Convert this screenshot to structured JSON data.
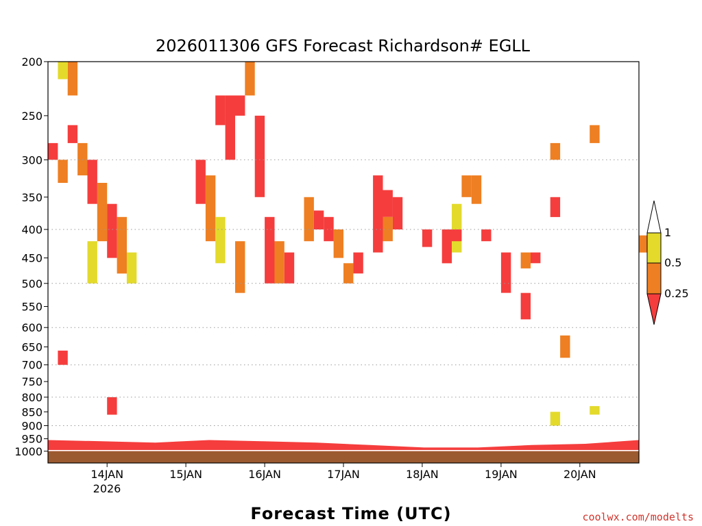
{
  "chart_data": {
    "type": "heatmap",
    "title": "2026011306 GFS Forecast Richardson# EGLL",
    "xlabel": "Forecast Time (UTC)",
    "ylabel": "",
    "credit": "coolwx.com/modelts",
    "y_scale": "log",
    "y_inverted": true,
    "y_ticks": [
      200,
      250,
      300,
      350,
      400,
      450,
      500,
      550,
      600,
      650,
      700,
      750,
      800,
      850,
      900,
      950,
      1000
    ],
    "y_tick_labels": [
      "200",
      "250",
      "300",
      "350",
      "400",
      "450",
      "500",
      "550",
      "600",
      "650",
      "700",
      "750",
      "800",
      "850",
      "900",
      "950",
      "1000"
    ],
    "y_gridlines": [
      300,
      400,
      500,
      600,
      700,
      800,
      900
    ],
    "x_range": [
      "2026-01-13T06:00Z",
      "2026-01-20T18:00Z"
    ],
    "x_ticks": [
      "2026-01-14T00:00Z",
      "2026-01-15T00:00Z",
      "2026-01-16T00:00Z",
      "2026-01-17T00:00Z",
      "2026-01-18T00:00Z",
      "2026-01-19T00:00Z",
      "2026-01-20T00:00Z"
    ],
    "x_tick_labels": [
      "14JAN",
      "15JAN",
      "16JAN",
      "17JAN",
      "18JAN",
      "19JAN",
      "20JAN"
    ],
    "x_sub_label": "2026",
    "legend": {
      "position": "right",
      "bins": [
        {
          "range": [
            0,
            0.25
          ],
          "color": "#f53d3d"
        },
        {
          "range": [
            0.25,
            0.5
          ],
          "color": "#ee7f22"
        },
        {
          "range": [
            0.5,
            1
          ],
          "color": "#e3da2c"
        },
        {
          "range": [
            1,
            null
          ],
          "color": "#ffffff"
        }
      ],
      "labels": [
        "1",
        "0.5",
        "0.25"
      ]
    },
    "colors": {
      "low": "#f53d3d",
      "mid": "#ee7f22",
      "high": "#e3da2c",
      "ground": "#9b5a2f",
      "grid": "#999999"
    },
    "cells": [
      [
        "2026-01-13T12:00Z",
        200,
        230,
        "mid"
      ],
      [
        "2026-01-13T09:00Z",
        200,
        215,
        "high"
      ],
      [
        "2026-01-13T06:00Z",
        280,
        300,
        "low"
      ],
      [
        "2026-01-13T09:00Z",
        300,
        330,
        "mid"
      ],
      [
        "2026-01-13T12:00Z",
        260,
        280,
        "low"
      ],
      [
        "2026-01-13T15:00Z",
        280,
        320,
        "mid"
      ],
      [
        "2026-01-13T18:00Z",
        300,
        360,
        "low"
      ],
      [
        "2026-01-13T21:00Z",
        330,
        420,
        "mid"
      ],
      [
        "2026-01-14T00:00Z",
        360,
        450,
        "low"
      ],
      [
        "2026-01-14T03:00Z",
        380,
        480,
        "mid"
      ],
      [
        "2026-01-13T18:00Z",
        420,
        500,
        "high"
      ],
      [
        "2026-01-14T06:00Z",
        440,
        500,
        "high"
      ],
      [
        "2026-01-13T09:00Z",
        660,
        700,
        "low"
      ],
      [
        "2026-01-14T00:00Z",
        800,
        860,
        "low"
      ],
      [
        "2026-01-15T09:00Z",
        230,
        260,
        "low"
      ],
      [
        "2026-01-15T12:00Z",
        230,
        300,
        "low"
      ],
      [
        "2026-01-15T15:00Z",
        230,
        250,
        "low"
      ],
      [
        "2026-01-15T03:00Z",
        300,
        360,
        "low"
      ],
      [
        "2026-01-15T06:00Z",
        320,
        420,
        "mid"
      ],
      [
        "2026-01-15T09:00Z",
        380,
        460,
        "high"
      ],
      [
        "2026-01-15T15:00Z",
        420,
        520,
        "mid"
      ],
      [
        "2026-01-15T18:00Z",
        200,
        230,
        "mid"
      ],
      [
        "2026-01-15T21:00Z",
        250,
        350,
        "low"
      ],
      [
        "2026-01-16T00:00Z",
        380,
        500,
        "low"
      ],
      [
        "2026-01-16T03:00Z",
        420,
        500,
        "mid"
      ],
      [
        "2026-01-16T06:00Z",
        440,
        500,
        "low"
      ],
      [
        "2026-01-16T12:00Z",
        350,
        420,
        "mid"
      ],
      [
        "2026-01-16T15:00Z",
        370,
        400,
        "low"
      ],
      [
        "2026-01-16T18:00Z",
        380,
        420,
        "low"
      ],
      [
        "2026-01-16T21:00Z",
        400,
        450,
        "mid"
      ],
      [
        "2026-01-17T00:00Z",
        460,
        500,
        "mid"
      ],
      [
        "2026-01-17T03:00Z",
        440,
        480,
        "low"
      ],
      [
        "2026-01-17T09:00Z",
        320,
        440,
        "low"
      ],
      [
        "2026-01-17T12:00Z",
        340,
        380,
        "low"
      ],
      [
        "2026-01-17T15:00Z",
        350,
        400,
        "low"
      ],
      [
        "2026-01-17T12:00Z",
        380,
        420,
        "mid"
      ],
      [
        "2026-01-18T00:00Z",
        400,
        430,
        "low"
      ],
      [
        "2026-01-18T06:00Z",
        400,
        460,
        "low"
      ],
      [
        "2026-01-18T09:00Z",
        360,
        440,
        "high"
      ],
      [
        "2026-01-18T12:00Z",
        320,
        350,
        "mid"
      ],
      [
        "2026-01-18T15:00Z",
        320,
        360,
        "mid"
      ],
      [
        "2026-01-18T09:00Z",
        400,
        420,
        "low"
      ],
      [
        "2026-01-18T18:00Z",
        400,
        420,
        "low"
      ],
      [
        "2026-01-19T00:00Z",
        440,
        520,
        "low"
      ],
      [
        "2026-01-19T06:00Z",
        440,
        470,
        "mid"
      ],
      [
        "2026-01-19T09:00Z",
        440,
        460,
        "low"
      ],
      [
        "2026-01-19T06:00Z",
        520,
        580,
        "low"
      ],
      [
        "2026-01-19T15:00Z",
        280,
        300,
        "mid"
      ],
      [
        "2026-01-19T15:00Z",
        350,
        380,
        "low"
      ],
      [
        "2026-01-19T18:00Z",
        620,
        680,
        "mid"
      ],
      [
        "2026-01-20T03:00Z",
        260,
        280,
        "mid"
      ],
      [
        "2026-01-20T18:00Z",
        410,
        440,
        "mid"
      ],
      [
        "2026-01-20T03:00Z",
        830,
        860,
        "high"
      ],
      [
        "2026-01-19T15:00Z",
        850,
        900,
        "high"
      ]
    ],
    "surface_layers": [
      {
        "name": "ground",
        "color": "ground",
        "bottom_hpa": 1050,
        "top_hpa": 1000
      },
      {
        "name": "boundary-low",
        "color": "low",
        "top_hpa": [
          955,
          960,
          965,
          955,
          960,
          965,
          975,
          985,
          985,
          975,
          970,
          955
        ]
      }
    ]
  }
}
